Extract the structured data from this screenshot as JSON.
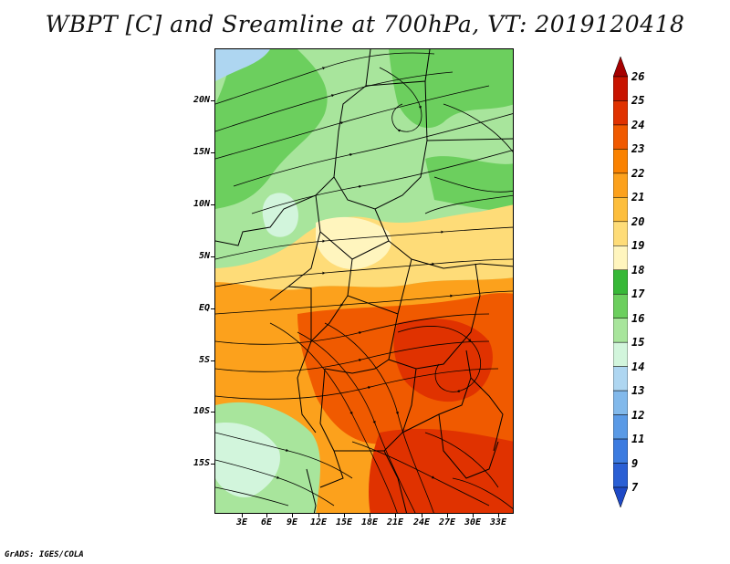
{
  "title": "WBPT [C] and Sreamline at 700hPa, VT: 2019120418",
  "credit": "GrADS: IGES/COLA",
  "map": {
    "lat_labels": [
      "20N",
      "15N",
      "10N",
      "5N",
      "EQ",
      "5S",
      "10S",
      "15S"
    ],
    "lon_labels": [
      "3E",
      "6E",
      "9E",
      "12E",
      "15E",
      "18E",
      "21E",
      "24E",
      "27E",
      "30E",
      "33E"
    ]
  },
  "colorbar": {
    "labels": [
      "26",
      "25",
      "24",
      "23",
      "22",
      "21",
      "20",
      "19",
      "18",
      "17",
      "16",
      "15",
      "14",
      "13",
      "12",
      "11",
      "9",
      "7"
    ],
    "colors": [
      "#a50000",
      "#c81400",
      "#e03200",
      "#f05a00",
      "#fa8200",
      "#fca11c",
      "#fdbe3c",
      "#fedc78",
      "#fff5be",
      "#37b837",
      "#6ccf5e",
      "#a8e59c",
      "#d2f5dc",
      "#aed6f1",
      "#82b9eb",
      "#5a9ae6",
      "#3c7be0",
      "#2a5fd4",
      "#1e49c6"
    ]
  }
}
